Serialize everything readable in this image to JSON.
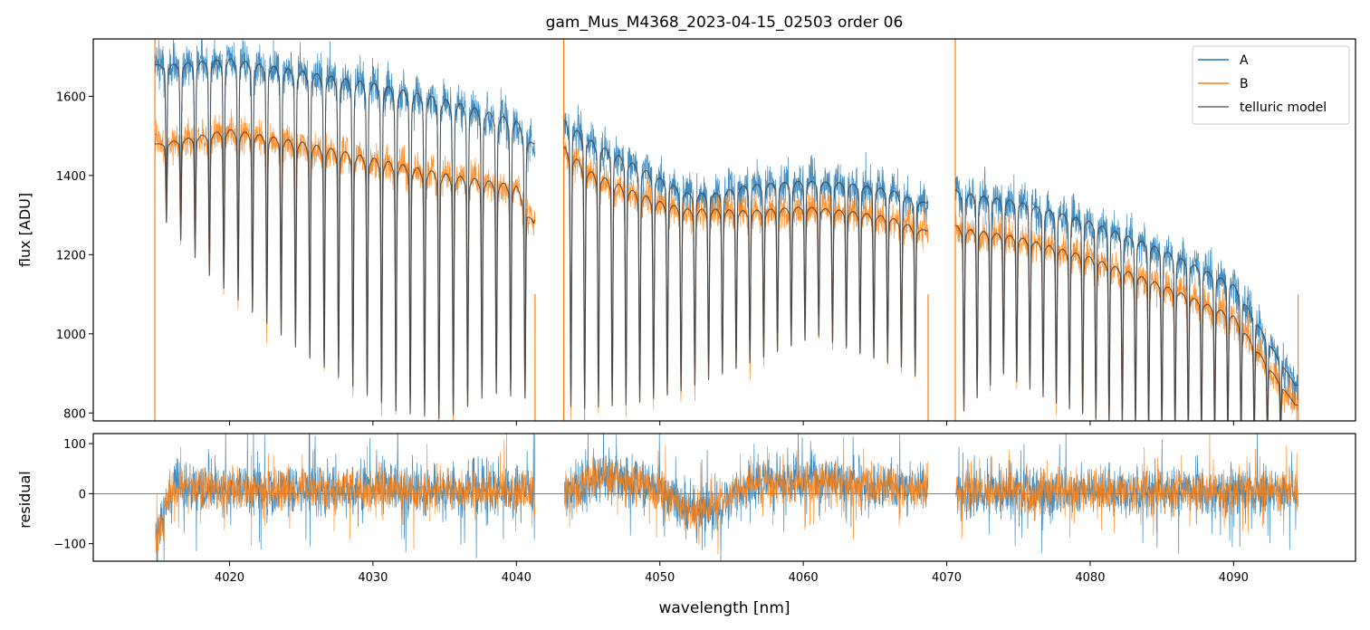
{
  "chart_data": [
    {
      "type": "line",
      "title": "gam_Mus_M4368_2023-04-15_02503  order 06",
      "xlabel": "",
      "ylabel": "flux [ADU]",
      "xlim": [
        4010.5,
        4098.5
      ],
      "ylim": [
        780,
        1745
      ],
      "yticks": [
        800,
        1000,
        1200,
        1400,
        1600
      ],
      "xticks": [
        4020,
        4030,
        4040,
        4050,
        4060,
        4070,
        4080,
        4090
      ],
      "xtick_labels_shown": false,
      "grid": false,
      "legend_position": "top-right",
      "segments": [
        [
          4014.8,
          4041.3
        ],
        [
          4043.3,
          4068.7
        ],
        [
          4070.6,
          4094.5
        ]
      ],
      "series": [
        {
          "name": "A",
          "color": "#1f77b4",
          "x": [
            4015.0,
            4020.0,
            4025.0,
            4030.0,
            4035.0,
            4040.0,
            4041.2,
            4043.4,
            4045.0,
            4048.0,
            4050.0,
            4052.0,
            4054.0,
            4056.0,
            4060.0,
            4063.0,
            4066.0,
            4068.6,
            4070.7,
            4075.0,
            4080.0,
            4085.0,
            4090.0,
            4094.3
          ],
          "values": [
            1680,
            1700,
            1670,
            1640,
            1600,
            1545,
            1480,
            1545,
            1500,
            1440,
            1400,
            1360,
            1360,
            1380,
            1390,
            1385,
            1370,
            1330,
            1365,
            1340,
            1290,
            1220,
            1130,
            870
          ]
        },
        {
          "name": "B",
          "color": "#ff7f0e",
          "x": [
            4015.0,
            4020.0,
            4025.0,
            4030.0,
            4035.0,
            4040.0,
            4041.2,
            4043.4,
            4045.0,
            4048.0,
            4050.0,
            4052.0,
            4054.0,
            4056.0,
            4060.0,
            4063.0,
            4066.0,
            4068.6,
            4070.7,
            4075.0,
            4080.0,
            4085.0,
            4090.0,
            4094.3
          ],
          "values": [
            1480,
            1520,
            1490,
            1450,
            1410,
            1380,
            1280,
            1480,
            1420,
            1370,
            1340,
            1320,
            1320,
            1315,
            1325,
            1315,
            1300,
            1260,
            1275,
            1250,
            1200,
            1130,
            1050,
            820
          ]
        },
        {
          "name": "telluric model",
          "color": "#444444"
        }
      ],
      "absorption_lines": {
        "segment_1_start": 4015.6,
        "segment_1_spacing": 1.0,
        "segment_1_count": 26,
        "segment_2_start": 4043.8,
        "segment_2_spacing": 0.96,
        "segment_2_count": 26,
        "segment_3_start": 4071.2,
        "segment_3_spacing": 0.92,
        "segment_3_count": 25,
        "min_flux": [
          1350,
          1200,
          1100,
          1000,
          920,
          850,
          830,
          900,
          880,
          860,
          870,
          900,
          950,
          1000,
          1050,
          1000,
          960,
          830,
          950,
          880,
          830,
          800,
          790,
          780,
          780
        ]
      }
    },
    {
      "type": "line",
      "title": "",
      "xlabel": "wavelength [nm]",
      "ylabel": "residual",
      "xlim": [
        4010.5,
        4098.5
      ],
      "ylim": [
        -135,
        120
      ],
      "yticks": [
        -100,
        0,
        100
      ],
      "xticks": [
        4020,
        4030,
        4040,
        4050,
        4060,
        4070,
        4080,
        4090
      ],
      "xtick_labels": [
        "4020",
        "4030",
        "4040",
        "4050",
        "4060",
        "4070",
        "4080",
        "4090"
      ],
      "zero_line": 0,
      "series": [
        {
          "name": "A",
          "color": "#1f77b4",
          "noise_amplitude": 55
        },
        {
          "name": "B",
          "color": "#ff7f0e",
          "noise_amplitude": 45
        }
      ],
      "baseline_trend": {
        "x": [
          4015.0,
          4016.0,
          4020.0,
          4041.2,
          4043.4,
          4046.0,
          4050.0,
          4052.0,
          4053.5,
          4056.0,
          4060.0,
          4068.6,
          4070.7,
          4094.3
        ],
        "values": [
          -90,
          15,
          10,
          5,
          0,
          35,
          10,
          -35,
          -30,
          15,
          25,
          10,
          5,
          5
        ]
      }
    }
  ]
}
